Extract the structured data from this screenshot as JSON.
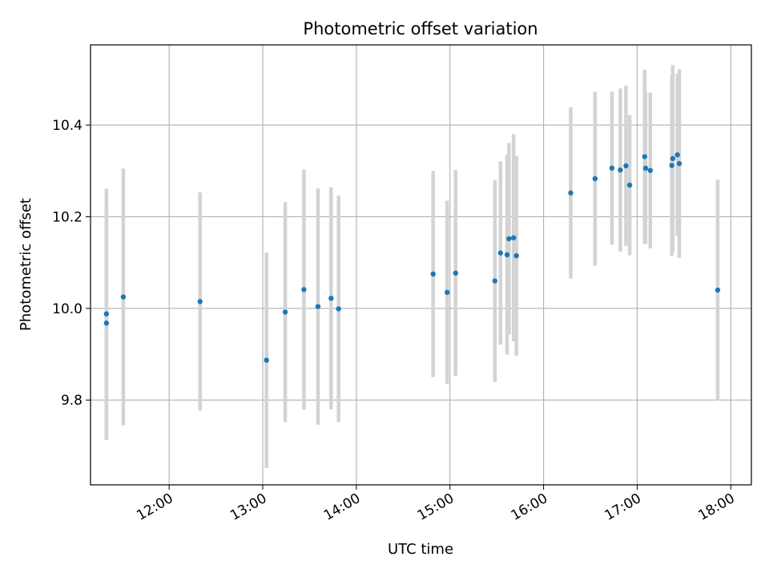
{
  "chart_data": {
    "type": "scatter",
    "title": "Photometric offset variation",
    "xlabel": "UTC time",
    "ylabel": "Photometric offset",
    "x_unit": "hours (UTC)",
    "xlim": [
      11.16,
      18.22
    ],
    "ylim": [
      9.615,
      10.575
    ],
    "grid": true,
    "x_ticks": [
      {
        "value": 12,
        "label": "12:00"
      },
      {
        "value": 13,
        "label": "13:00"
      },
      {
        "value": 14,
        "label": "14:00"
      },
      {
        "value": 15,
        "label": "15:00"
      },
      {
        "value": 16,
        "label": "16:00"
      },
      {
        "value": 17,
        "label": "17:00"
      },
      {
        "value": 18,
        "label": "18:00"
      }
    ],
    "y_ticks": [
      {
        "value": 9.8,
        "label": "9.8"
      },
      {
        "value": 10.0,
        "label": "10.0"
      },
      {
        "value": 10.2,
        "label": "10.2"
      },
      {
        "value": 10.4,
        "label": "10.4"
      }
    ],
    "colors": {
      "point": "#1f77b4",
      "errorbar": "#d3d3d3",
      "grid": "#b0b0b0",
      "frame": "#000000"
    },
    "points": [
      {
        "x": 11.33,
        "y": 9.968,
        "err": 0.255
      },
      {
        "x": 11.33,
        "y": 9.988,
        "err": 0.273
      },
      {
        "x": 11.51,
        "y": 10.025,
        "err": 0.28
      },
      {
        "x": 12.33,
        "y": 10.015,
        "err": 0.238
      },
      {
        "x": 13.04,
        "y": 9.887,
        "err": 0.235
      },
      {
        "x": 13.24,
        "y": 9.992,
        "err": 0.24
      },
      {
        "x": 13.44,
        "y": 10.041,
        "err": 0.262
      },
      {
        "x": 13.59,
        "y": 10.004,
        "err": 0.258
      },
      {
        "x": 13.73,
        "y": 10.022,
        "err": 0.242
      },
      {
        "x": 13.81,
        "y": 9.999,
        "err": 0.247
      },
      {
        "x": 14.82,
        "y": 10.075,
        "err": 0.225
      },
      {
        "x": 14.97,
        "y": 10.035,
        "err": 0.2
      },
      {
        "x": 15.06,
        "y": 10.077,
        "err": 0.225
      },
      {
        "x": 15.48,
        "y": 10.06,
        "err": 0.22
      },
      {
        "x": 15.54,
        "y": 10.121,
        "err": 0.2
      },
      {
        "x": 15.61,
        "y": 10.117,
        "err": 0.218
      },
      {
        "x": 15.63,
        "y": 10.152,
        "err": 0.209
      },
      {
        "x": 15.68,
        "y": 10.154,
        "err": 0.226
      },
      {
        "x": 15.71,
        "y": 10.115,
        "err": 0.218
      },
      {
        "x": 16.29,
        "y": 10.252,
        "err": 0.187
      },
      {
        "x": 16.55,
        "y": 10.283,
        "err": 0.19
      },
      {
        "x": 16.73,
        "y": 10.306,
        "err": 0.167
      },
      {
        "x": 16.82,
        "y": 10.302,
        "err": 0.178
      },
      {
        "x": 16.88,
        "y": 10.311,
        "err": 0.175
      },
      {
        "x": 16.92,
        "y": 10.269,
        "err": 0.153
      },
      {
        "x": 17.08,
        "y": 10.331,
        "err": 0.19
      },
      {
        "x": 17.09,
        "y": 10.306,
        "err": 0.166
      },
      {
        "x": 17.14,
        "y": 10.301,
        "err": 0.17
      },
      {
        "x": 17.37,
        "y": 10.312,
        "err": 0.197
      },
      {
        "x": 17.38,
        "y": 10.327,
        "err": 0.204
      },
      {
        "x": 17.43,
        "y": 10.335,
        "err": 0.177
      },
      {
        "x": 17.45,
        "y": 10.316,
        "err": 0.206
      },
      {
        "x": 17.86,
        "y": 10.04,
        "err": 0.241
      }
    ]
  }
}
